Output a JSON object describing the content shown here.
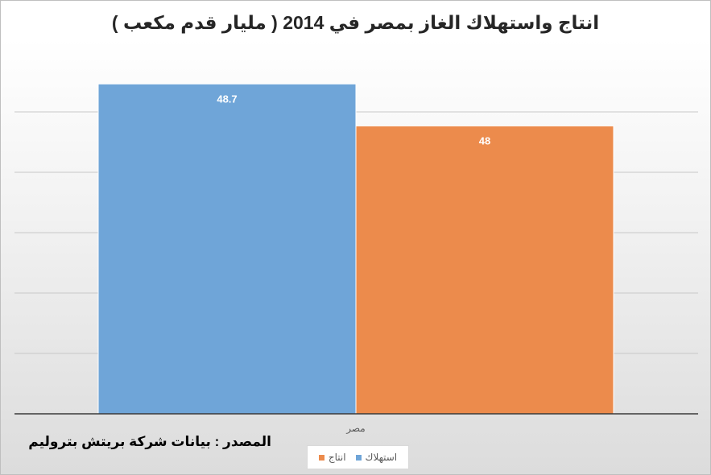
{
  "chart_data": {
    "type": "bar",
    "title": "انتاج واستهلاك الغاز بمصر في 2014 ( مليار قدم مكعب )",
    "xlabel": "",
    "ylabel": "",
    "categories": [
      "مصر"
    ],
    "series": [
      {
        "name": "استهلاك",
        "values": [
          48.7
        ],
        "value_labels": [
          "48.7"
        ],
        "color": "#6fa5d8"
      },
      {
        "name": "انتاج",
        "values": [
          48
        ],
        "value_labels": [
          "48"
        ],
        "color": "#ec8b4c"
      }
    ],
    "ylim": [
      43.2,
      49.2
    ],
    "grid": true,
    "legend_position": "bottom",
    "annotation": "المصدر : بيانات شركة بريتش بتروليم"
  }
}
